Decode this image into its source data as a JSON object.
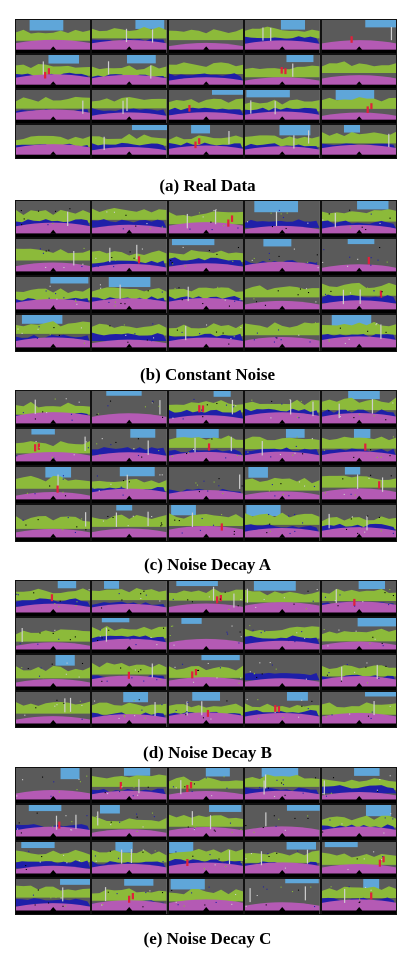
{
  "colors": {
    "road": "#b45ab4",
    "vegetation": "#8cba3a",
    "sky": "#5fa6d9",
    "building": "#5a5a5a",
    "car": "#1f1fa8",
    "person": "#e0203c",
    "void": "#000000",
    "pole": "#cfcfcf"
  },
  "panels": [
    {
      "id": "real-data",
      "caption": "(a) Real Data",
      "rows": 4,
      "cols": 5,
      "variant": "real"
    },
    {
      "id": "constant-noise",
      "caption": "(b) Constant Noise",
      "rows": 4,
      "cols": 5,
      "variant": "b"
    },
    {
      "id": "noise-decay-a",
      "caption": "(c) Noise Decay A",
      "rows": 4,
      "cols": 5,
      "variant": "c"
    },
    {
      "id": "noise-decay-b",
      "caption": "(d) Noise Decay B",
      "rows": 4,
      "cols": 5,
      "variant": "d"
    },
    {
      "id": "noise-decay-c",
      "caption": "(e) Noise Decay C",
      "rows": 4,
      "cols": 5,
      "variant": "e"
    }
  ]
}
